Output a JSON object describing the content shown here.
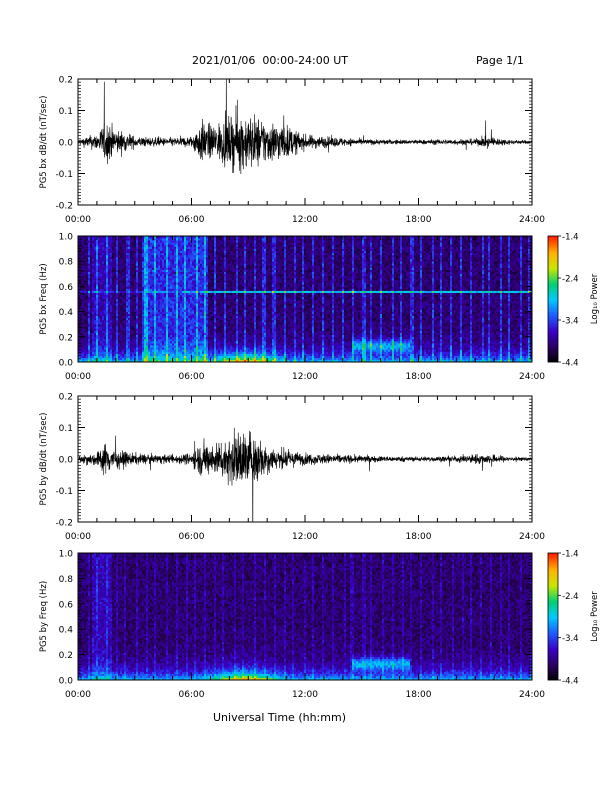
{
  "header": {
    "title": "2021/01/06  00:00-24:00 UT",
    "page": "Page 1/1"
  },
  "xaxis_label": "Universal Time (hh:mm)",
  "colors": {
    "colorbar": [
      "#000000",
      "#2a0060",
      "#3a00c8",
      "#1f5aff",
      "#00c8ff",
      "#00d070",
      "#c8e600",
      "#ffb000",
      "#ff2000"
    ]
  },
  "chart_data": [
    {
      "type": "line",
      "id": "bx-wave",
      "title": "",
      "ylabel": "PG5 bx dB/dt (nT/sec)",
      "xlim": [
        0,
        24
      ],
      "ylim": [
        -0.2,
        0.2
      ],
      "x_ticks": [
        "00:00",
        "06:00",
        "12:00",
        "18:00",
        "24:00"
      ],
      "y_ticks": [
        "-0.2",
        "-0.1",
        "0.0",
        "0.1",
        "0.2"
      ],
      "y_tick_values": [
        -0.2,
        -0.1,
        0,
        0.1,
        0.2
      ],
      "envelope": {
        "hours": [
          0,
          1,
          1.5,
          2,
          3,
          4,
          5,
          6,
          6.5,
          7,
          7.5,
          8,
          8.5,
          9,
          9.5,
          10,
          10.5,
          11,
          11.5,
          12,
          13,
          14,
          15,
          16,
          17,
          18,
          19,
          20,
          21,
          21.5,
          22,
          23,
          24
        ],
        "amplitude": [
          0.02,
          0.06,
          0.15,
          0.09,
          0.04,
          0.03,
          0.03,
          0.04,
          0.15,
          0.12,
          0.14,
          0.17,
          0.2,
          0.2,
          0.18,
          0.15,
          0.14,
          0.12,
          0.08,
          0.05,
          0.04,
          0.03,
          0.02,
          0.018,
          0.016,
          0.016,
          0.018,
          0.02,
          0.022,
          0.035,
          0.03,
          0.015,
          0.012
        ]
      }
    },
    {
      "type": "heatmap",
      "id": "bx-spec",
      "title": "",
      "ylabel": "PG5 bx Freq (Hz)",
      "xlim": [
        0,
        24
      ],
      "ylim": [
        0,
        1.0
      ],
      "x_ticks": [
        "00:00",
        "06:00",
        "12:00",
        "18:00",
        "24:00"
      ],
      "y_ticks": [
        "0.0",
        "0.2",
        "0.4",
        "0.6",
        "0.8",
        "1.0"
      ],
      "y_tick_values": [
        0,
        0.2,
        0.4,
        0.6,
        0.8,
        1.0
      ],
      "colorbar_label": "Log₁₀ Power",
      "colorbar_ticks": [
        "-1.4",
        "-2.4",
        "-3.4",
        "-4.4"
      ],
      "colorbar_tick_values": [
        -1.4,
        -2.4,
        -3.4,
        -4.4
      ],
      "zlim": [
        -4.4,
        -1.4
      ],
      "narrowband_line_hz": 0.56
    },
    {
      "type": "line",
      "id": "by-wave",
      "title": "",
      "ylabel": "PG5 by dB/dt (nT/sec)",
      "xlim": [
        0,
        24
      ],
      "ylim": [
        -0.2,
        0.2
      ],
      "x_ticks": [
        "00:00",
        "06:00",
        "12:00",
        "18:00",
        "24:00"
      ],
      "y_ticks": [
        "-0.2",
        "-0.1",
        "0.0",
        "0.1",
        "0.2"
      ],
      "y_tick_values": [
        -0.2,
        -0.1,
        0,
        0.1,
        0.2
      ],
      "envelope": {
        "hours": [
          0,
          1,
          1.5,
          2,
          3,
          4,
          5,
          6,
          6.5,
          7,
          7.5,
          8,
          8.5,
          9,
          9.5,
          10,
          10.5,
          11,
          11.5,
          12,
          13,
          14,
          15,
          16,
          17,
          18,
          19,
          20,
          21,
          22,
          23,
          24
        ],
        "amplitude": [
          0.02,
          0.05,
          0.12,
          0.06,
          0.04,
          0.03,
          0.03,
          0.04,
          0.12,
          0.1,
          0.13,
          0.16,
          0.2,
          0.2,
          0.17,
          0.1,
          0.07,
          0.06,
          0.05,
          0.04,
          0.035,
          0.03,
          0.025,
          0.02,
          0.018,
          0.016,
          0.018,
          0.02,
          0.035,
          0.03,
          0.015,
          0.012
        ]
      }
    },
    {
      "type": "heatmap",
      "id": "by-spec",
      "title": "",
      "ylabel": "PG5 by Freq (Hz)",
      "xlim": [
        0,
        24
      ],
      "ylim": [
        0,
        1.0
      ],
      "x_ticks": [
        "00:00",
        "06:00",
        "12:00",
        "18:00",
        "24:00"
      ],
      "y_ticks": [
        "0.0",
        "0.2",
        "0.4",
        "0.6",
        "0.8",
        "1.0"
      ],
      "y_tick_values": [
        0,
        0.2,
        0.4,
        0.6,
        0.8,
        1.0
      ],
      "colorbar_label": "Log₁₀ Power",
      "colorbar_ticks": [
        "-1.4",
        "-2.4",
        "-3.4",
        "-4.4"
      ],
      "colorbar_tick_values": [
        -1.4,
        -2.4,
        -3.4,
        -4.4
      ],
      "zlim": [
        -4.4,
        -1.4
      ]
    }
  ]
}
